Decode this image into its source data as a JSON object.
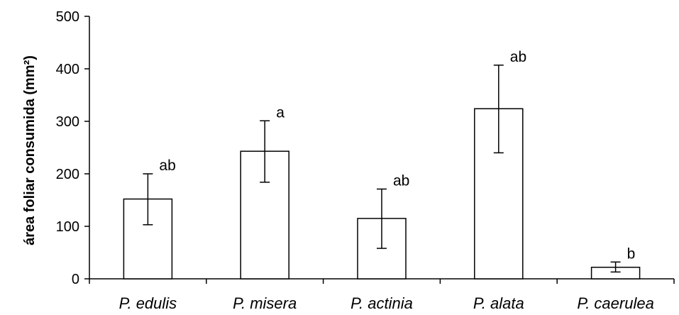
{
  "chart_data": {
    "type": "bar",
    "title": "",
    "xlabel": "",
    "ylabel": "área foliar consumida (mm²)",
    "ylim": [
      0,
      500
    ],
    "yticks": [
      0,
      100,
      200,
      300,
      400,
      500
    ],
    "grid": false,
    "legend": "none",
    "categories": [
      "P. edulis",
      "P. misera",
      "P. actinia",
      "P. alata",
      "P. caerulea"
    ],
    "values": [
      152,
      243,
      115,
      324,
      22
    ],
    "error_low": [
      103,
      184,
      58,
      240,
      13
    ],
    "error_high": [
      200,
      301,
      171,
      407,
      32
    ],
    "annotations": [
      "ab",
      "a",
      "ab",
      "ab",
      "b"
    ],
    "bar_fill": "#ffffff",
    "bar_stroke": "#000000"
  }
}
